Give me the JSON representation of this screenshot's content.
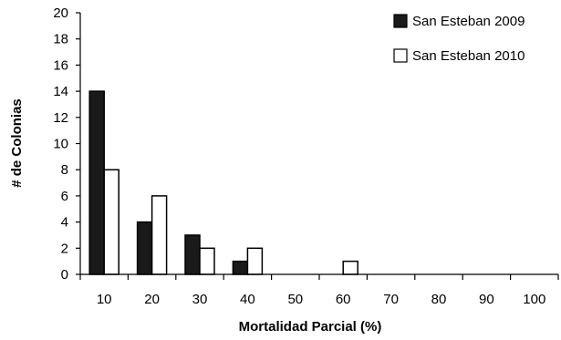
{
  "chart_data": {
    "type": "bar",
    "xlabel": "Mortalidad Parcial (%)",
    "ylabel": "# de Colonias",
    "ylim": [
      0,
      20
    ],
    "yticks": [
      0,
      2,
      4,
      6,
      8,
      10,
      12,
      14,
      16,
      18,
      20
    ],
    "categories": [
      "10",
      "20",
      "30",
      "40",
      "50",
      "60",
      "70",
      "80",
      "90",
      "100"
    ],
    "series": [
      {
        "name": "San Esteban 2009",
        "color": "#1a1a1a",
        "values": [
          14,
          4,
          3,
          1,
          0,
          0,
          0,
          0,
          0,
          0
        ]
      },
      {
        "name": "San Esteban 2010",
        "color": "#ffffff",
        "values": [
          8,
          6,
          2,
          2,
          0,
          1,
          0,
          0,
          0,
          0
        ]
      }
    ],
    "grid": false,
    "legend_position": "top-right"
  }
}
